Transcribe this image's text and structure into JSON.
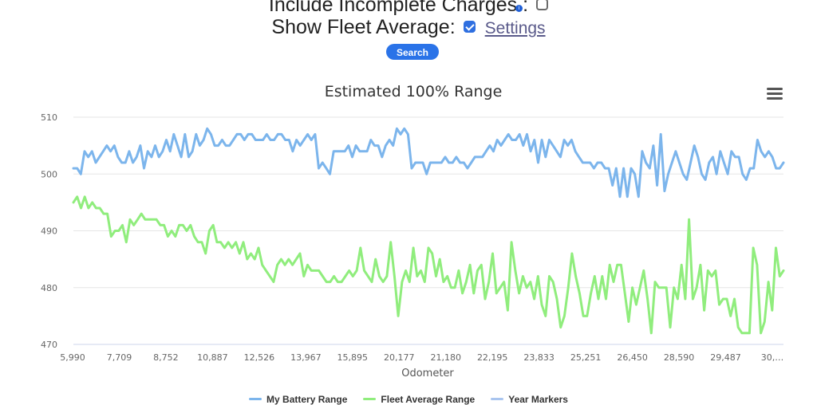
{
  "form": {
    "incomplete_label": "Include Incomplete Charges",
    "incomplete_suffix": ":",
    "incomplete_checked": false,
    "fleet_label": "Show Fleet Average:",
    "fleet_checked": true,
    "settings_link": "Settings",
    "search_button": "Search"
  },
  "menu": {
    "icon": "hamburger-menu-icon"
  },
  "chart_data": {
    "type": "line",
    "title": "Estimated 100% Range",
    "xlabel": "Odometer",
    "ylabel": "",
    "ylim": [
      470,
      510
    ],
    "yticks": [
      470,
      480,
      490,
      500,
      510
    ],
    "xtick_labels": [
      "5,990",
      "7,709",
      "8,752",
      "10,887",
      "12,526",
      "13,967",
      "15,895",
      "20,177",
      "21,180",
      "22,195",
      "23,833",
      "25,251",
      "26,450",
      "28,590",
      "29,487",
      "30,…"
    ],
    "grid": true,
    "legend_position": "bottom",
    "series": [
      {
        "name": "My Battery Range",
        "color": "#7cb5ec",
        "values": [
          501,
          501,
          500,
          504,
          503,
          504,
          502,
          503,
          504,
          505,
          504,
          505,
          503,
          502,
          502,
          504,
          502,
          503,
          505,
          501,
          504,
          503,
          505,
          503,
          504,
          506,
          504,
          507,
          505,
          503,
          507,
          503,
          504,
          507,
          505,
          506,
          508,
          507,
          505,
          505,
          506,
          505,
          505,
          506,
          507,
          507,
          506,
          507,
          507,
          506,
          506,
          506,
          507,
          506,
          506,
          507,
          507,
          506,
          506,
          504,
          506,
          505,
          506,
          507,
          506,
          507,
          501,
          502,
          501,
          500,
          504,
          504,
          504,
          504,
          505,
          503,
          505,
          504,
          504,
          504,
          506,
          505,
          505,
          503,
          505,
          506,
          505,
          508,
          507,
          508,
          507,
          501,
          502,
          502,
          502,
          500,
          502,
          502,
          502,
          502,
          503,
          502,
          502,
          503,
          502,
          502,
          501,
          502,
          503,
          503,
          503,
          504,
          505,
          504,
          506,
          505,
          506,
          507,
          506,
          506,
          507,
          505,
          507,
          504,
          506,
          502,
          506,
          503,
          506,
          505,
          504,
          503,
          506,
          505,
          506,
          504,
          503,
          502,
          502,
          502,
          501,
          502,
          502,
          501,
          501,
          498,
          501,
          496,
          501,
          496,
          501,
          500,
          496,
          504,
          502,
          501,
          505,
          498,
          507,
          497,
          500,
          502,
          504,
          502,
          500,
          499,
          502,
          505,
          503,
          500,
          499,
          502,
          503,
          500,
          504,
          502,
          500,
          504,
          503,
          503,
          500,
          499,
          501,
          501,
          506,
          504,
          503,
          504,
          503,
          501,
          501,
          502
        ]
      },
      {
        "name": "Fleet Average Range",
        "color": "#90ed7d",
        "values": [
          495,
          496,
          494,
          496,
          494,
          495,
          494,
          494,
          493,
          493,
          489,
          490,
          490,
          491,
          488,
          492,
          491,
          492,
          493,
          492,
          492,
          492,
          492,
          491,
          491,
          489,
          490,
          489,
          491,
          491,
          490,
          491,
          489,
          488,
          488,
          486,
          490,
          491,
          488,
          488,
          487,
          488,
          487,
          488,
          486,
          488,
          485,
          486,
          485,
          487,
          484,
          483,
          482,
          481,
          484,
          485,
          484,
          485,
          484,
          485,
          486,
          482,
          484,
          483,
          483,
          483,
          482,
          481,
          481,
          482,
          481,
          481,
          482,
          483,
          482,
          483,
          487,
          483,
          482,
          481,
          485,
          482,
          481,
          482,
          488,
          482,
          475,
          481,
          483,
          481,
          487,
          482,
          483,
          481,
          487,
          486,
          482,
          485,
          481,
          482,
          480,
          480,
          483,
          479,
          481,
          484,
          479,
          483,
          484,
          478,
          481,
          486,
          479,
          480,
          481,
          476,
          488,
          483,
          479,
          482,
          480,
          481,
          478,
          482,
          477,
          475,
          482,
          481,
          478,
          473,
          475,
          480,
          486,
          482,
          479,
          475,
          475,
          479,
          482,
          478,
          482,
          478,
          484,
          481,
          484,
          484,
          479,
          474,
          480,
          477,
          480,
          483,
          478,
          472,
          481,
          480,
          480,
          480,
          473,
          480,
          478,
          484,
          478,
          492,
          478,
          480,
          484,
          476,
          483,
          482,
          483,
          477,
          478,
          478,
          475,
          478,
          473,
          472,
          472,
          472,
          487,
          484,
          472,
          474,
          481,
          476,
          487,
          482,
          483
        ]
      },
      {
        "name": "Year Markers",
        "color": "#a9c5ef",
        "values": []
      }
    ]
  }
}
